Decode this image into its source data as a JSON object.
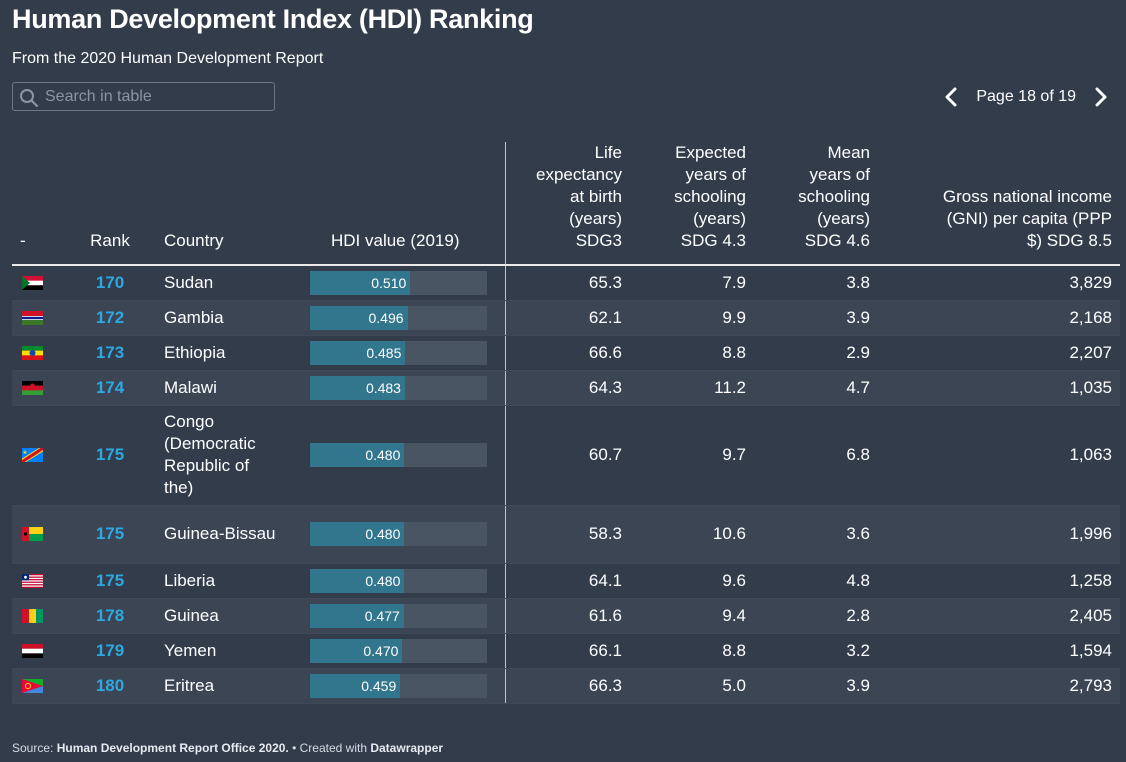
{
  "header": {
    "title": "Human Development Index (HDI) Ranking",
    "subtitle": "From the 2020 Human Development Report"
  },
  "search": {
    "placeholder": "Search in table",
    "value": ""
  },
  "pagination": {
    "label": "Page 18 of 19"
  },
  "icons": {
    "search": "search-icon",
    "prev": "chevron-left-icon",
    "next": "chevron-right-icon"
  },
  "columns": {
    "flag": "-",
    "rank": "Rank",
    "country": "Country",
    "hdi": "HDI value (2019)",
    "life": [
      "Life",
      "expectancy",
      "at birth",
      "(years)",
      "SDG3"
    ],
    "expected": [
      "Expected",
      "years of",
      "schooling",
      "(years)",
      "SDG 4.3"
    ],
    "mean": [
      "Mean",
      "years of",
      "schooling",
      "(years)",
      "SDG 4.6"
    ],
    "gni": [
      "Gross national income",
      "(GNI) per capita (PPP",
      "$) SDG 8.5"
    ]
  },
  "colors": {
    "background": "#323c4b",
    "row_alt": "#3b4554",
    "bar": "#32768e",
    "bar_track": "#4a5564",
    "rank": "#2ea8e0"
  },
  "rows": [
    {
      "rank": "170",
      "country": "Sudan",
      "hdi": "0.510",
      "life": "65.3",
      "expected": "7.9",
      "mean": "3.8",
      "gni": "3,829"
    },
    {
      "rank": "172",
      "country": "Gambia",
      "hdi": "0.496",
      "life": "62.1",
      "expected": "9.9",
      "mean": "3.9",
      "gni": "2,168"
    },
    {
      "rank": "173",
      "country": "Ethiopia",
      "hdi": "0.485",
      "life": "66.6",
      "expected": "8.8",
      "mean": "2.9",
      "gni": "2,207"
    },
    {
      "rank": "174",
      "country": "Malawi",
      "hdi": "0.483",
      "life": "64.3",
      "expected": "11.2",
      "mean": "4.7",
      "gni": "1,035"
    },
    {
      "rank": "175",
      "country": "Congo (Democratic Republic of the)",
      "hdi": "0.480",
      "life": "60.7",
      "expected": "9.7",
      "mean": "6.8",
      "gni": "1,063"
    },
    {
      "rank": "175",
      "country": "Guinea-Bissau",
      "hdi": "0.480",
      "life": "58.3",
      "expected": "10.6",
      "mean": "3.6",
      "gni": "1,996"
    },
    {
      "rank": "175",
      "country": "Liberia",
      "hdi": "0.480",
      "life": "64.1",
      "expected": "9.6",
      "mean": "4.8",
      "gni": "1,258"
    },
    {
      "rank": "178",
      "country": "Guinea",
      "hdi": "0.477",
      "life": "61.6",
      "expected": "9.4",
      "mean": "2.8",
      "gni": "2,405"
    },
    {
      "rank": "179",
      "country": "Yemen",
      "hdi": "0.470",
      "life": "66.1",
      "expected": "8.8",
      "mean": "3.2",
      "gni": "1,594"
    },
    {
      "rank": "180",
      "country": "Eritrea",
      "hdi": "0.459",
      "life": "66.3",
      "expected": "5.0",
      "mean": "3.9",
      "gni": "2,793"
    }
  ],
  "footer": {
    "source_label": "Source: ",
    "source": "Human Development Report Office 2020.",
    "separator": " • Created with ",
    "tool": "Datawrapper"
  }
}
